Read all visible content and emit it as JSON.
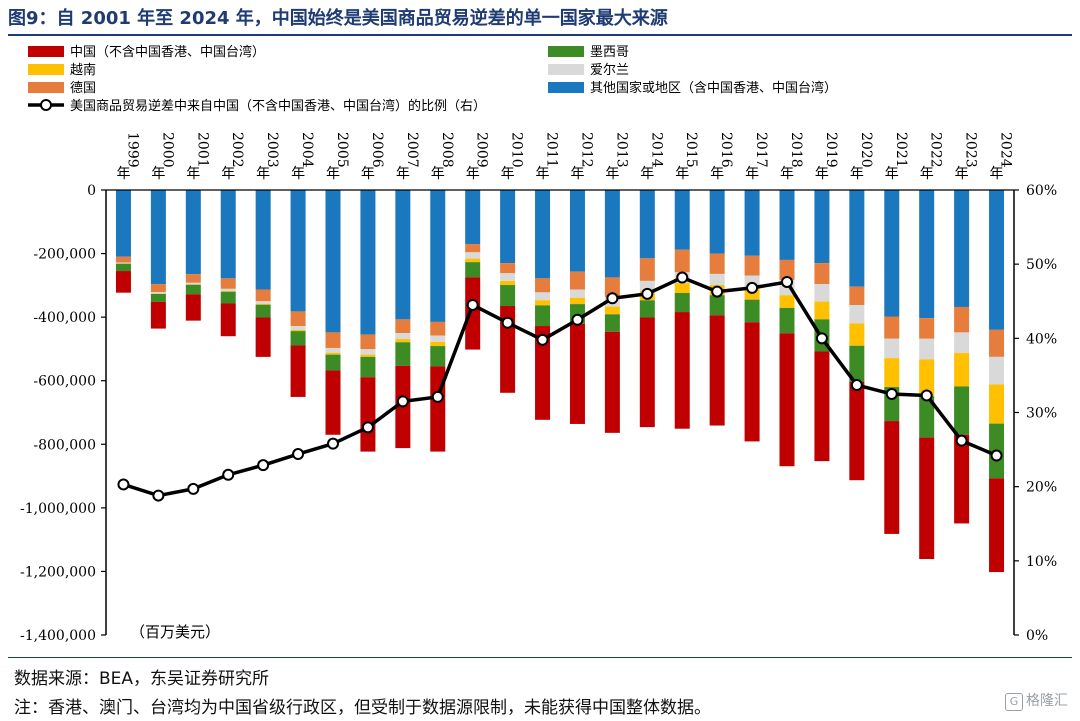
{
  "header": {
    "title": "图9：自 2001 年至 2024 年，中国始终是美国商品贸易逆差的单一国家最大来源"
  },
  "chart_data": {
    "type": "bar",
    "stacked": true,
    "secondary_type": "line",
    "categories": [
      "1999年",
      "2000年",
      "2001年",
      "2002年",
      "2003年",
      "2004年",
      "2005年",
      "2006年",
      "2007年",
      "2008年",
      "2009年",
      "2010年",
      "2011年",
      "2012年",
      "2013年",
      "2014年",
      "2015年",
      "2016年",
      "2017年",
      "2018年",
      "2019年",
      "2020年",
      "2021年",
      "2022年",
      "2023年",
      "2024年"
    ],
    "y_unit_label": "（百万美元）",
    "ylim": [
      -1400000,
      0
    ],
    "y_ticks": [
      0,
      -200000,
      -400000,
      -600000,
      -800000,
      -1000000,
      -1200000,
      -1400000
    ],
    "y_tick_labels": [
      "0",
      "-200,000",
      "-400,000",
      "-600,000",
      "-800,000",
      "-1,000,000",
      "-1,200,000",
      "-1,400,000"
    ],
    "y2lim": [
      0,
      60
    ],
    "y2_ticks": [
      0,
      10,
      20,
      30,
      40,
      50,
      60
    ],
    "y2_tick_labels": [
      "0%",
      "10%",
      "20%",
      "30%",
      "40%",
      "50%",
      "60%"
    ],
    "legend_placement": "top",
    "series": [
      {
        "name": "其他国家或地区（含中国香港、中国台湾）",
        "color": "#1b77be",
        "values": [
          -210000,
          -296000,
          -265000,
          -278000,
          -313000,
          -382000,
          -448000,
          -455000,
          -407000,
          -415000,
          -170000,
          -230000,
          -278000,
          -257000,
          -275000,
          -215000,
          -188000,
          -200000,
          -207000,
          -220000,
          -230000,
          -304000,
          -398000,
          -403000,
          -368000,
          -440000
        ]
      },
      {
        "name": "德国",
        "color": "#e67d3c",
        "values": [
          -18000,
          -25000,
          -27000,
          -33000,
          -37000,
          -46000,
          -49000,
          -46000,
          -43000,
          -43000,
          -26000,
          -32000,
          -44000,
          -56000,
          -62000,
          -71000,
          -71000,
          -64000,
          -62000,
          -63000,
          -66000,
          -58000,
          -70000,
          -65000,
          -80000,
          -85000
        ]
      },
      {
        "name": "爱尔兰",
        "color": "#d9d9d9",
        "values": [
          -3000,
          -5000,
          -5000,
          -7000,
          -8000,
          -12000,
          -15000,
          -17000,
          -19000,
          -20000,
          -20000,
          -24000,
          -25000,
          -26000,
          -30000,
          -32000,
          -34000,
          -35000,
          -38000,
          -48000,
          -55000,
          -58000,
          -61000,
          -65000,
          -65000,
          -87000
        ]
      },
      {
        "name": "越南",
        "color": "#ffc000",
        "values": [
          -1000,
          -1000,
          -1000,
          -2000,
          -3000,
          -4000,
          -6000,
          -7000,
          -10000,
          -13000,
          -11000,
          -13000,
          -16000,
          -20000,
          -24000,
          -29000,
          -31000,
          -32000,
          -38000,
          -40000,
          -56000,
          -70000,
          -91000,
          -116000,
          -105000,
          -123000
        ]
      },
      {
        "name": "墨西哥",
        "color": "#3d8b25",
        "values": [
          -23000,
          -25000,
          -30000,
          -37000,
          -40000,
          -45000,
          -50000,
          -64000,
          -74000,
          -64000,
          -48000,
          -66000,
          -65000,
          -62000,
          -55000,
          -54000,
          -60000,
          -63000,
          -71000,
          -80000,
          -101000,
          -113000,
          -107000,
          -130000,
          -152000,
          -172000
        ]
      },
      {
        "name": "中国（不含中国香港、中国台湾）",
        "color": "#c00000",
        "values": [
          -68000,
          -84000,
          -83000,
          -103000,
          -124000,
          -162000,
          -202000,
          -234000,
          -259000,
          -268000,
          -227000,
          -273000,
          -295000,
          -315000,
          -318000,
          -345000,
          -367000,
          -347000,
          -375000,
          -418000,
          -345000,
          -310000,
          -355000,
          -382000,
          -279000,
          -295000
        ]
      }
    ],
    "line": {
      "name": "美国商品贸易逆差中来自中国（不含中国香港、中国台湾）的比例（右）",
      "color": "#000000",
      "values": [
        20.3,
        18.8,
        19.7,
        21.6,
        22.9,
        24.4,
        25.8,
        28.0,
        31.5,
        32.1,
        44.5,
        42.1,
        39.8,
        42.5,
        45.4,
        46.0,
        48.2,
        46.3,
        46.8,
        47.6,
        40.0,
        33.7,
        32.5,
        32.3,
        26.2,
        24.2
      ]
    },
    "legend_order": [
      "中国（不含中国香港、中国台湾）",
      "墨西哥",
      "越南",
      "爱尔兰",
      "德国",
      "其他国家或地区（含中国香港、中国台湾）"
    ]
  },
  "footer": {
    "source": "数据来源：BEA，东吴证券研究所",
    "note": "注：香港、澳门、台湾均为中国省级行政区，但受制于数据源限制，未能获得中国整体数据。",
    "watermark": "格隆汇",
    "watermark_mark": "G"
  }
}
